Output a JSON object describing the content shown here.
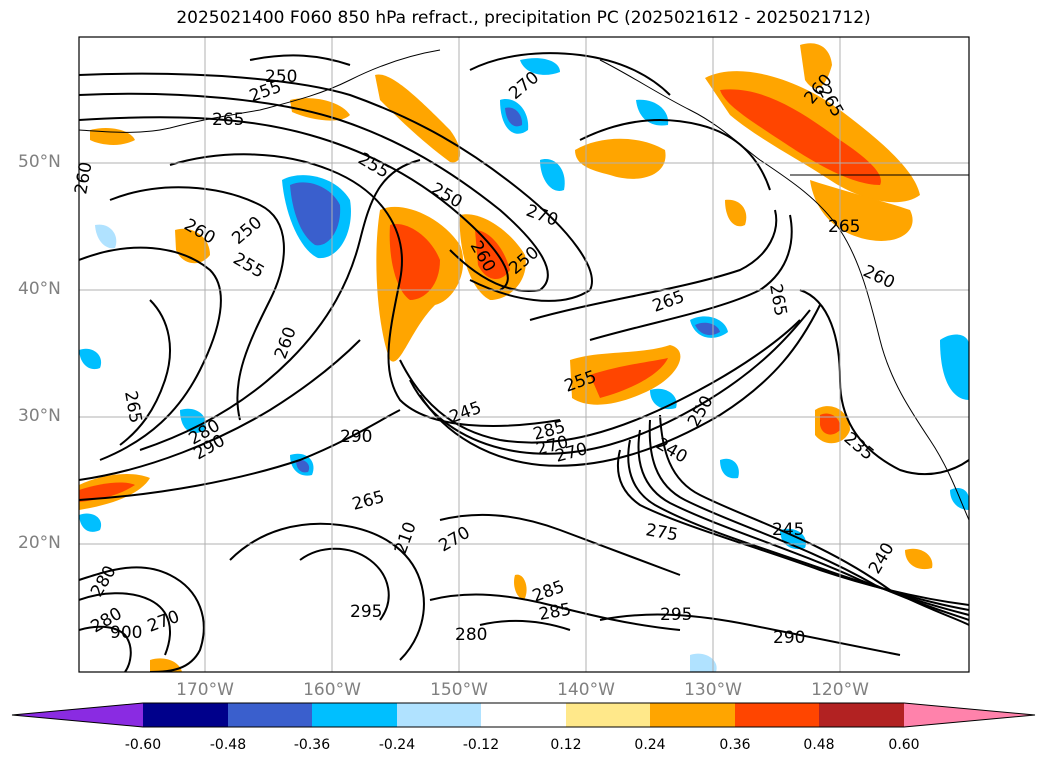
{
  "title": "2025021400 F060 850 hPa refract., precipitation PC (2025021612 - 2025021712)",
  "latitude_labels": [
    "50°N",
    "40°N",
    "30°N",
    "20°N"
  ],
  "longitude_labels": [
    "170°W",
    "160°W",
    "150°W",
    "140°W",
    "130°W",
    "120°W"
  ],
  "colorbar": {
    "ticks": [
      "-0.60",
      "-0.48",
      "-0.36",
      "-0.24",
      "-0.12",
      "0.12",
      "0.24",
      "0.36",
      "0.48",
      "0.60"
    ],
    "colors": [
      "#8a2be2",
      "#00008b",
      "#3a5fcd",
      "#00bfff",
      "#b0e2ff",
      "#ffffff",
      "#ffe88a",
      "#ffa500",
      "#ff4500",
      "#b22222",
      "#ff82ab"
    ]
  },
  "contour_labels": [
    "250",
    "255",
    "265",
    "260",
    "270",
    "255",
    "250",
    "260",
    "260",
    "255",
    "250",
    "250",
    "270",
    "260",
    "265",
    "260",
    "265",
    "265",
    "260",
    "265",
    "265",
    "280",
    "290",
    "290",
    "245",
    "255",
    "280",
    "270",
    "285",
    "270",
    "240",
    "250",
    "235",
    "265",
    "210",
    "270",
    "275",
    "245",
    "285",
    "295",
    "285",
    "280",
    "295",
    "290",
    "280",
    "240",
    "900",
    "270"
  ]
}
